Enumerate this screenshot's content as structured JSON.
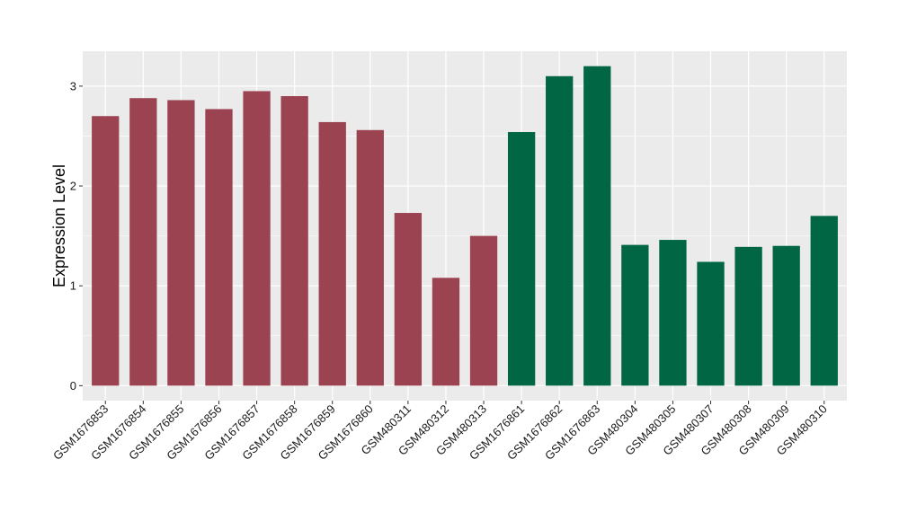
{
  "chart_data": {
    "type": "bar",
    "ylabel": "Expression Level",
    "xlabel": "",
    "ylim": [
      -0.15,
      3.35
    ],
    "yticks": [
      0,
      1,
      2,
      3
    ],
    "grid": true,
    "background": "#ebebeb",
    "gridline_color": "#ffffff",
    "categories": [
      "GSM1676853",
      "GSM1676854",
      "GSM1676855",
      "GSM1676856",
      "GSM1676857",
      "GSM1676858",
      "GSM1676859",
      "GSM1676860",
      "GSM480311",
      "GSM480312",
      "GSM480313",
      "GSM1676861",
      "GSM1676862",
      "GSM1676863",
      "GSM480304",
      "GSM480305",
      "GSM480307",
      "GSM480308",
      "GSM480309",
      "GSM480310"
    ],
    "values": [
      2.7,
      2.88,
      2.86,
      2.77,
      2.95,
      2.9,
      2.64,
      2.56,
      1.73,
      1.08,
      1.5,
      2.54,
      3.1,
      3.2,
      1.41,
      1.46,
      1.24,
      1.39,
      1.4,
      1.7
    ],
    "bar_colors": [
      "#9b4350",
      "#9b4350",
      "#9b4350",
      "#9b4350",
      "#9b4350",
      "#9b4350",
      "#9b4350",
      "#9b4350",
      "#9b4350",
      "#9b4350",
      "#9b4350",
      "#006644",
      "#006644",
      "#006644",
      "#006644",
      "#006644",
      "#006644",
      "#006644",
      "#006644",
      "#006644"
    ]
  }
}
